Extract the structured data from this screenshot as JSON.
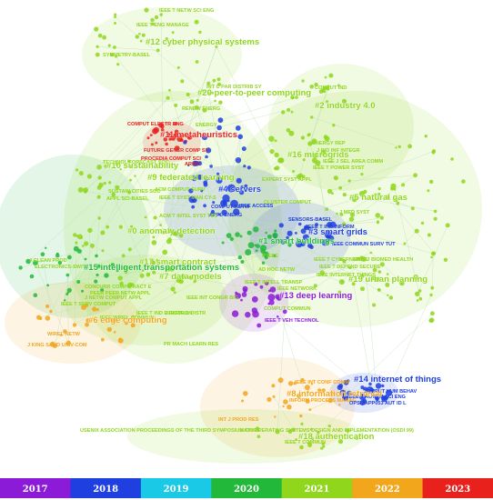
{
  "colors": {
    "c2017": "#8b1bd6",
    "c2018": "#1f3fe0",
    "c2019": "#19c9e6",
    "c2020": "#22b83a",
    "c2021": "#8fd61c",
    "c2022": "#f2a61c",
    "c2023": "#e8211c",
    "link": "#b9dfb0"
  },
  "clusters": [
    {
      "id": "c12",
      "label": "#12 cyber physical systems",
      "color": "c2021"
    },
    {
      "id": "c20",
      "label": "#20 peer-to-peer computing",
      "color": "c2021"
    },
    {
      "id": "c2",
      "label": "#2 industry 4.0",
      "color": "c2021"
    },
    {
      "id": "c11",
      "label": "#11 metaheuristics",
      "color": "c2023"
    },
    {
      "id": "c16",
      "label": "#16 microgrids",
      "color": "c2021"
    },
    {
      "id": "c10",
      "label": "#10 sustainability",
      "color": "c2021"
    },
    {
      "id": "c9",
      "label": "#9 federated learning",
      "color": "c2021"
    },
    {
      "id": "c4",
      "label": "#4 servers",
      "color": "c2018"
    },
    {
      "id": "c5",
      "label": "#5 natural gas",
      "color": "c2021"
    },
    {
      "id": "c3",
      "label": "#3 smart grids",
      "color": "c2018"
    },
    {
      "id": "c1",
      "label": "#1 smart buildings",
      "color": "c2020"
    },
    {
      "id": "c0",
      "label": "#0 anomaly detection",
      "color": "c2021"
    },
    {
      "id": "c17",
      "label": "#17 smart contract",
      "color": "c2021"
    },
    {
      "id": "c15",
      "label": "#15 intelligent transportation systems",
      "color": "c2020"
    },
    {
      "id": "c19",
      "label": "#19 urban planning",
      "color": "c2021"
    },
    {
      "id": "c7",
      "label": "#7 data models",
      "color": "c2021"
    },
    {
      "id": "c13",
      "label": "#13 deep learning",
      "color": "c2017"
    },
    {
      "id": "c6",
      "label": "#6 edge computing",
      "color": "c2022"
    },
    {
      "id": "c14",
      "label": "#14 internet of things",
      "color": "c2018"
    },
    {
      "id": "c8",
      "label": "#8 information retrieval",
      "color": "c2022"
    },
    {
      "id": "c18",
      "label": "#18 authentication",
      "color": "c2021"
    }
  ],
  "journals": [
    {
      "text": "IEEE T NETW SCI ENG",
      "color": "c2021"
    },
    {
      "text": "IEEE T ENG MANAGE",
      "color": "c2021"
    },
    {
      "text": "SYMMETRY-BASEL",
      "color": "c2021"
    },
    {
      "text": "INT C PAR DISTRIB SY",
      "color": "c2021"
    },
    {
      "text": "RENEW ENERG",
      "color": "c2021"
    },
    {
      "text": "COMPUT IND",
      "color": "c2021"
    },
    {
      "text": "COMPUT ELECTR ENG",
      "color": "c2023"
    },
    {
      "text": "ENERGY",
      "color": "c2021"
    },
    {
      "text": "FUTURE GENER COMP SY",
      "color": "c2023"
    },
    {
      "text": "PROCEDIA COMPUT SCI",
      "color": "c2023"
    },
    {
      "text": "TECHNOL FORECAST SOC",
      "color": "c2021"
    },
    {
      "text": "ARXIV",
      "color": "c2023"
    },
    {
      "text": "ENERGY REP",
      "color": "c2021"
    },
    {
      "text": "J IND INF INTEGR",
      "color": "c2021"
    },
    {
      "text": "IEEE T POWER SYST",
      "color": "c2021"
    },
    {
      "text": "IEEE J SEL AREA COMM",
      "color": "c2021"
    },
    {
      "text": "EXPERT SYST APPL",
      "color": "c2021"
    },
    {
      "text": "SUSTAIN CITIES SOC",
      "color": "c2021"
    },
    {
      "text": "APPL SCI-BASEL",
      "color": "c2021"
    },
    {
      "text": "ACM COMPUT SURV",
      "color": "c2021"
    },
    {
      "text": "IEEE T SYST MAN CY-S",
      "color": "c2021"
    },
    {
      "text": "COMPUT NETW",
      "color": "c2018"
    },
    {
      "text": "APPL ENERG",
      "color": "c2018"
    },
    {
      "text": "IEEE ACCESS",
      "color": "c2018"
    },
    {
      "text": "ACM T INTEL SYST TEC",
      "color": "c2021"
    },
    {
      "text": "CLUSTER COMPUT",
      "color": "c2021"
    },
    {
      "text": "J MED SYST",
      "color": "c2021"
    },
    {
      "text": "SENSORS-BASEL",
      "color": "c2018"
    },
    {
      "text": "IEEE T IND INFORM",
      "color": "c2018"
    },
    {
      "text": "IEEE COMMUN SURV TUT",
      "color": "c2018"
    },
    {
      "text": "IEEE T CYBERNETICS",
      "color": "c2021"
    },
    {
      "text": "IEEE J BIOMED HEALTH",
      "color": "c2021"
    },
    {
      "text": "IEEE T DEPEND SECURE",
      "color": "c2021"
    },
    {
      "text": "IEEE INTERNET THINGS",
      "color": "c2021"
    },
    {
      "text": "J CLEAN PROD",
      "color": "c2021"
    },
    {
      "text": "ELECTRONICS-SWITZ",
      "color": "c2021"
    },
    {
      "text": "IEEE T SERV COMPUT",
      "color": "c2021"
    },
    {
      "text": "CONCURR COMP-PRACT E",
      "color": "c2021"
    },
    {
      "text": "PEER PEER NETW APPL",
      "color": "c2021"
    },
    {
      "text": "J NETW COMPUT APPL",
      "color": "c2021"
    },
    {
      "text": "J PARALL DISTR",
      "color": "c2021"
    },
    {
      "text": "IEEE WIREL COMMUN",
      "color": "c2021"
    },
    {
      "text": "P IEEE",
      "color": "c2021"
    },
    {
      "text": "AD HOC NETW",
      "color": "c2021"
    },
    {
      "text": "IEEE T INTELL TRANSP",
      "color": "c2021"
    },
    {
      "text": "IEEE NETWORK",
      "color": "c2021"
    },
    {
      "text": "COMPUT COMMUN",
      "color": "c2021"
    },
    {
      "text": "IEEE INT CONGR BIG",
      "color": "c2021"
    },
    {
      "text": "IEEE T IND ELECTRON",
      "color": "c2021"
    },
    {
      "text": "IEEE T VEH TECHNOL",
      "color": "c2017"
    },
    {
      "text": "PR MACH LEARN RES",
      "color": "c2021"
    },
    {
      "text": "WIREL NETW",
      "color": "c2022"
    },
    {
      "text": "J KING SAUD UNIV-COM",
      "color": "c2022"
    },
    {
      "text": "IEEE INT CONF COMM",
      "color": "c2022"
    },
    {
      "text": "COMPUT HUM BEHAV",
      "color": "c2018"
    },
    {
      "text": "INFORM PROCESS MANAG",
      "color": "c2022"
    },
    {
      "text": "IEEE T AUTOM SCI ENG",
      "color": "c2018"
    },
    {
      "text": "OPSIZAPP053 AUT ID L",
      "color": "c2018"
    },
    {
      "text": "INT J PROD RES",
      "color": "c2022"
    },
    {
      "text": "USENIX ASSOCIATION PROCEEDINGS OF THE THIRD SYMPOSIUM ON OPERATING SYSTEMS DESIGN AND IMPLEMENTATION (OSDI 99)",
      "color": "c2021"
    },
    {
      "text": "IEEE T COMMUN",
      "color": "c2021"
    },
    {
      "text": "NATURE",
      "color": "c2021"
    }
  ],
  "timeline": [
    {
      "year": "2017",
      "color": "c2017"
    },
    {
      "year": "2018",
      "color": "c2018"
    },
    {
      "year": "2019",
      "color": "c2019"
    },
    {
      "year": "2020",
      "color": "c2020"
    },
    {
      "year": "2021",
      "color": "c2021"
    },
    {
      "year": "2022",
      "color": "c2022"
    },
    {
      "year": "2023",
      "color": "c2023"
    }
  ]
}
